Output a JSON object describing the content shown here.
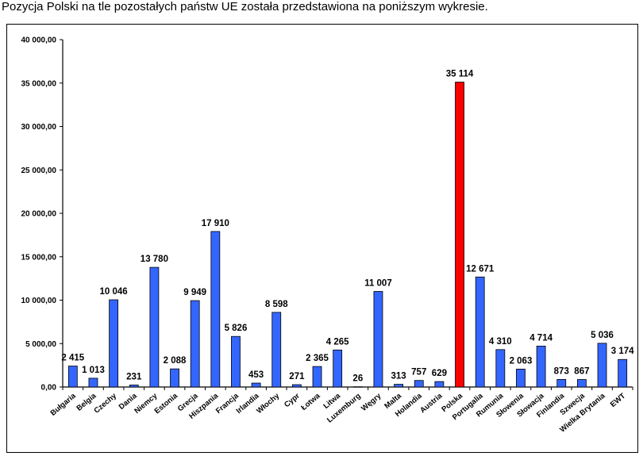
{
  "caption": "Pozycja Polski na tle pozostałych państw UE została przedstawiona na poniższym wykresie.",
  "chart_data": {
    "type": "bar",
    "title": "",
    "xlabel": "",
    "ylabel": "",
    "ylim": [
      0,
      40000
    ],
    "yticks": [
      0,
      5000,
      10000,
      15000,
      20000,
      25000,
      30000,
      35000,
      40000
    ],
    "ytick_labels": [
      "0,00",
      "5 000,00",
      "10 000,00",
      "15 000,00",
      "20 000,00",
      "25 000,00",
      "30 000,00",
      "35 000,00",
      "40 000,00"
    ],
    "grid": false,
    "categories": [
      "Bułgaria",
      "Belgia",
      "Czechy",
      "Dania",
      "Niemcy",
      "Estonia",
      "Grecja",
      "Hiszpania",
      "Francja",
      "Irlandia",
      "Włochy",
      "Cypr",
      "Łotwa",
      "Litwa",
      "Luxemburg",
      "Węgry",
      "Malta",
      "Holandia",
      "Austria",
      "Polska",
      "Portugalia",
      "Rumunia",
      "Słowenia",
      "Słowacja",
      "Finlandia",
      "Szwecja",
      "Wielka Brytania",
      "EWT"
    ],
    "values": [
      2415,
      1013,
      10046,
      231,
      13780,
      2088,
      9949,
      17910,
      5826,
      453,
      8598,
      271,
      2365,
      4265,
      26,
      11007,
      313,
      757,
      629,
      35114,
      12671,
      4310,
      2063,
      4714,
      873,
      867,
      5036,
      3174
    ],
    "data_labels": [
      "2 415",
      "1 013",
      "10 046",
      "231",
      "13 780",
      "2 088",
      "9 949",
      "17 910",
      "5 826",
      "453",
      "8 598",
      "271",
      "2 365",
      "4 265",
      "26",
      "11 007",
      "313",
      "757",
      "629",
      "35 114",
      "12 671",
      "4 310",
      "2 063",
      "4 714",
      "873",
      "867",
      "5 036",
      "3 174"
    ],
    "highlight": "Polska",
    "colors": {
      "default": "#3366ff",
      "highlight": "#ff0000",
      "edge": "#000000"
    }
  }
}
